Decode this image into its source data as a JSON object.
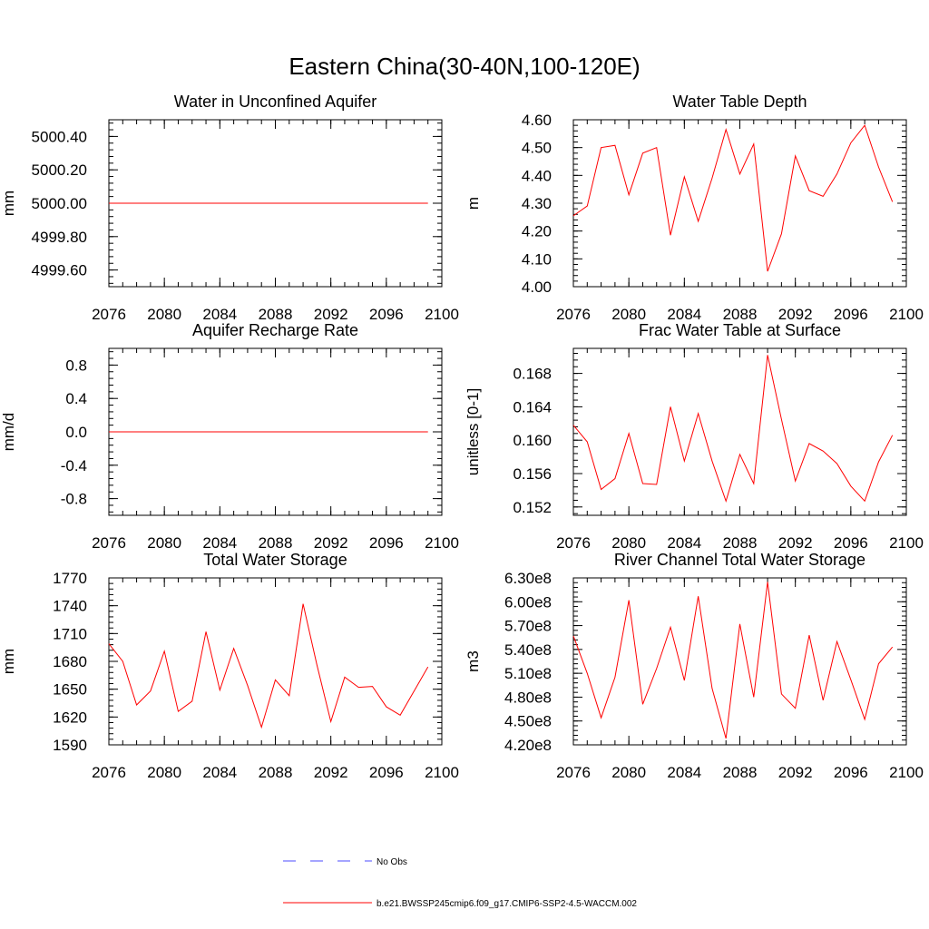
{
  "figure_title": "Eastern China(30-40N,100-120E)",
  "colors": {
    "model_line": "#ff0000",
    "obs_line": "#4b4bff",
    "axes": "#000000"
  },
  "legend": {
    "entries": [
      {
        "label": "No Obs",
        "style": "dashed",
        "color": "#4b4bff"
      },
      {
        "label": "b.e21.BWSSP245cmip6.f09_g17.CMIP6-SSP2-4.5-WACCM.002",
        "style": "solid",
        "color": "#ff0000"
      }
    ]
  },
  "chart_data": [
    {
      "type": "line",
      "title": "Water in Unconfined Aquifer",
      "xlabel": "",
      "ylabel": "mm",
      "xlim": [
        2076,
        2100
      ],
      "ylim": [
        4999.5,
        5000.5
      ],
      "xticks": [
        2076,
        2080,
        2084,
        2088,
        2092,
        2096,
        2100
      ],
      "xtick_labels": [
        "2076",
        "2080",
        "2084",
        "2088",
        "2092",
        "2096",
        "2100"
      ],
      "yticks": [
        4999.6,
        4999.8,
        5000.0,
        5000.2,
        5000.4
      ],
      "ytick_labels": [
        "4999.60",
        "4999.80",
        "5000.00",
        "5000.20",
        "5000.40"
      ],
      "x": [
        2076,
        2077,
        2078,
        2079,
        2080,
        2081,
        2082,
        2083,
        2084,
        2085,
        2086,
        2087,
        2088,
        2089,
        2090,
        2091,
        2092,
        2093,
        2094,
        2095,
        2096,
        2097,
        2098,
        2099
      ],
      "series": [
        {
          "name": "b.e21.BWSSP245cmip6.f09_g17.CMIP6-SSP2-4.5-WACCM.002",
          "values": [
            5000,
            5000,
            5000,
            5000,
            5000,
            5000,
            5000,
            5000,
            5000,
            5000,
            5000,
            5000,
            5000,
            5000,
            5000,
            5000,
            5000,
            5000,
            5000,
            5000,
            5000,
            5000,
            5000,
            5000
          ]
        }
      ]
    },
    {
      "type": "line",
      "title": "Water Table Depth",
      "xlabel": "",
      "ylabel": "m",
      "xlim": [
        2076,
        2100
      ],
      "ylim": [
        4.0,
        4.6
      ],
      "xticks": [
        2076,
        2080,
        2084,
        2088,
        2092,
        2096,
        2100
      ],
      "xtick_labels": [
        "2076",
        "2080",
        "2084",
        "2088",
        "2092",
        "2096",
        "2100"
      ],
      "yticks": [
        4.0,
        4.1,
        4.2,
        4.3,
        4.4,
        4.5,
        4.6
      ],
      "ytick_labels": [
        "4.00",
        "4.10",
        "4.20",
        "4.30",
        "4.40",
        "4.50",
        "4.60"
      ],
      "x": [
        2076,
        2077,
        2078,
        2079,
        2080,
        2081,
        2082,
        2083,
        2084,
        2085,
        2086,
        2087,
        2088,
        2089,
        2090,
        2091,
        2092,
        2093,
        2094,
        2095,
        2096,
        2097,
        2098,
        2099
      ],
      "series": [
        {
          "name": "b.e21.BWSSP245cmip6.f09_g17.CMIP6-SSP2-4.5-WACCM.002",
          "values": [
            4.255,
            4.29,
            4.5,
            4.508,
            4.33,
            4.48,
            4.5,
            4.185,
            4.395,
            4.235,
            4.39,
            4.565,
            4.405,
            4.513,
            4.055,
            4.19,
            4.47,
            4.345,
            4.325,
            4.405,
            4.517,
            4.58,
            4.43,
            4.305
          ]
        }
      ]
    },
    {
      "type": "line",
      "title": "Aquifer Recharge Rate",
      "xlabel": "",
      "ylabel": "mm/d",
      "xlim": [
        2076,
        2100
      ],
      "ylim": [
        -1.0,
        1.0
      ],
      "xticks": [
        2076,
        2080,
        2084,
        2088,
        2092,
        2096,
        2100
      ],
      "xtick_labels": [
        "2076",
        "2080",
        "2084",
        "2088",
        "2092",
        "2096",
        "2100"
      ],
      "yticks": [
        -0.8,
        -0.4,
        0.0,
        0.4,
        0.8
      ],
      "ytick_labels": [
        "-0.8",
        "-0.4",
        "0.0",
        "0.4",
        "0.8"
      ],
      "x": [
        2076,
        2077,
        2078,
        2079,
        2080,
        2081,
        2082,
        2083,
        2084,
        2085,
        2086,
        2087,
        2088,
        2089,
        2090,
        2091,
        2092,
        2093,
        2094,
        2095,
        2096,
        2097,
        2098,
        2099
      ],
      "series": [
        {
          "name": "b.e21.BWSSP245cmip6.f09_g17.CMIP6-SSP2-4.5-WACCM.002",
          "values": [
            0,
            0,
            0,
            0,
            0,
            0,
            0,
            0,
            0,
            0,
            0,
            0,
            0,
            0,
            0,
            0,
            0,
            0,
            0,
            0,
            0,
            0,
            0,
            0
          ]
        }
      ]
    },
    {
      "type": "line",
      "title": "Frac Water Table at Surface",
      "xlabel": "",
      "ylabel": "unitless [0-1]",
      "xlim": [
        2076,
        2100
      ],
      "ylim": [
        0.151,
        0.171
      ],
      "xticks": [
        2076,
        2080,
        2084,
        2088,
        2092,
        2096,
        2100
      ],
      "xtick_labels": [
        "2076",
        "2080",
        "2084",
        "2088",
        "2092",
        "2096",
        "2100"
      ],
      "yticks": [
        0.152,
        0.156,
        0.16,
        0.164,
        0.168
      ],
      "ytick_labels": [
        "0.152",
        "0.156",
        "0.160",
        "0.164",
        "0.168"
      ],
      "x": [
        2076,
        2077,
        2078,
        2079,
        2080,
        2081,
        2082,
        2083,
        2084,
        2085,
        2086,
        2087,
        2088,
        2089,
        2090,
        2091,
        2092,
        2093,
        2094,
        2095,
        2096,
        2097,
        2098,
        2099
      ],
      "series": [
        {
          "name": "b.e21.BWSSP245cmip6.f09_g17.CMIP6-SSP2-4.5-WACCM.002",
          "values": [
            0.1618,
            0.1598,
            0.1541,
            0.1554,
            0.1608,
            0.1548,
            0.1547,
            0.164,
            0.1575,
            0.1632,
            0.1575,
            0.1527,
            0.1583,
            0.1548,
            0.1702,
            0.1625,
            0.1551,
            0.1596,
            0.1587,
            0.1572,
            0.1545,
            0.1527,
            0.1574,
            0.1606
          ]
        }
      ]
    },
    {
      "type": "line",
      "title": "Total Water Storage",
      "xlabel": "",
      "ylabel": "mm",
      "xlim": [
        2076,
        2100
      ],
      "ylim": [
        1590,
        1770
      ],
      "xticks": [
        2076,
        2080,
        2084,
        2088,
        2092,
        2096,
        2100
      ],
      "xtick_labels": [
        "2076",
        "2080",
        "2084",
        "2088",
        "2092",
        "2096",
        "2100"
      ],
      "yticks": [
        1590,
        1620,
        1650,
        1680,
        1710,
        1740,
        1770
      ],
      "ytick_labels": [
        "1590",
        "1620",
        "1650",
        "1680",
        "1710",
        "1740",
        "1770"
      ],
      "x": [
        2076,
        2077,
        2078,
        2079,
        2080,
        2081,
        2082,
        2083,
        2084,
        2085,
        2086,
        2087,
        2088,
        2089,
        2090,
        2091,
        2092,
        2093,
        2094,
        2095,
        2096,
        2097,
        2098,
        2099
      ],
      "series": [
        {
          "name": "b.e21.BWSSP245cmip6.f09_g17.CMIP6-SSP2-4.5-WACCM.002",
          "values": [
            1699,
            1680,
            1633,
            1648,
            1691,
            1626,
            1637,
            1712,
            1649,
            1694,
            1654,
            1609,
            1660,
            1643,
            1742,
            1676,
            1615,
            1663,
            1652,
            1653,
            1631,
            1622,
            1648,
            1674
          ]
        }
      ]
    },
    {
      "type": "line",
      "title": "River Channel Total Water Storage",
      "xlabel": "",
      "ylabel": "m3",
      "xlim": [
        2076,
        2100
      ],
      "ylim": [
        420000000,
        630000000
      ],
      "xticks": [
        2076,
        2080,
        2084,
        2088,
        2092,
        2096,
        2100
      ],
      "xtick_labels": [
        "2076",
        "2080",
        "2084",
        "2088",
        "2092",
        "2096",
        "2100"
      ],
      "yticks": [
        420000000,
        450000000,
        480000000,
        510000000,
        540000000,
        570000000,
        600000000,
        630000000
      ],
      "ytick_labels": [
        "4.20e8",
        "4.50e8",
        "4.80e8",
        "5.10e8",
        "5.40e8",
        "5.70e8",
        "6.00e8",
        "6.30e8"
      ],
      "x": [
        2076,
        2077,
        2078,
        2079,
        2080,
        2081,
        2082,
        2083,
        2084,
        2085,
        2086,
        2087,
        2088,
        2089,
        2090,
        2091,
        2092,
        2093,
        2094,
        2095,
        2096,
        2097,
        2098,
        2099
      ],
      "series": [
        {
          "name": "b.e21.BWSSP245cmip6.f09_g17.CMIP6-SSP2-4.5-WACCM.002",
          "values": [
            557000000,
            510000000,
            454000000,
            505000000,
            602000000,
            471000000,
            516000000,
            568000000,
            501000000,
            607000000,
            491000000,
            428000000,
            572000000,
            480000000,
            625000000,
            484000000,
            466000000,
            558000000,
            476000000,
            550000000,
            502000000,
            452000000,
            522000000,
            543000000
          ]
        }
      ]
    }
  ]
}
